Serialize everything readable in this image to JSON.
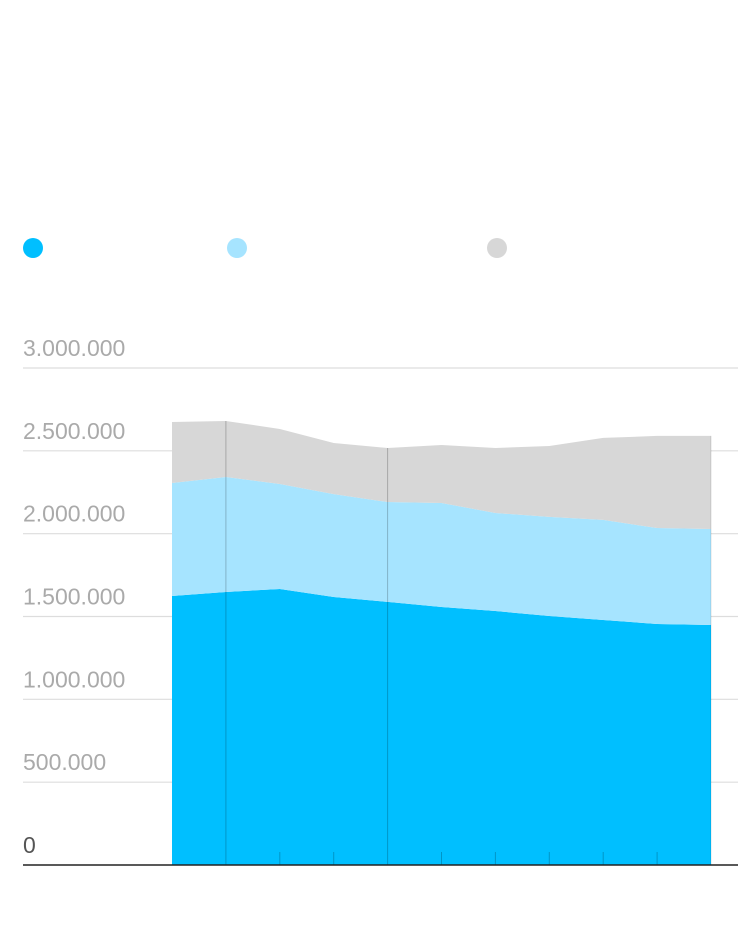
{
  "chart_data": {
    "type": "area",
    "stacked": true,
    "title": "",
    "xlabel": "",
    "ylabel": "",
    "ylim": [
      0,
      3000000
    ],
    "yticks": [
      "0",
      "500.000",
      "1.000.000",
      "1.500.000",
      "2.000.000",
      "2.500.000",
      "3.000.000"
    ],
    "ytick_values": [
      0,
      500000,
      1000000,
      1500000,
      2000000,
      2500000,
      3000000
    ],
    "grid": true,
    "legend_placement": "top-left",
    "x_count": 11,
    "series": [
      {
        "color": "#00bfff",
        "values": [
          1624000,
          1648000,
          1666000,
          1618000,
          1588000,
          1557000,
          1533000,
          1503000,
          1479000,
          1455000,
          1449000
        ]
      },
      {
        "color": "#a6e4ff",
        "values": [
          682000,
          694000,
          634000,
          621000,
          603000,
          628000,
          592000,
          598000,
          604000,
          579000,
          579000
        ]
      },
      {
        "color": "#d7d7d7",
        "values": [
          368000,
          338000,
          332000,
          308000,
          326000,
          350000,
          392000,
          428000,
          495000,
          556000,
          562000
        ]
      }
    ]
  }
}
